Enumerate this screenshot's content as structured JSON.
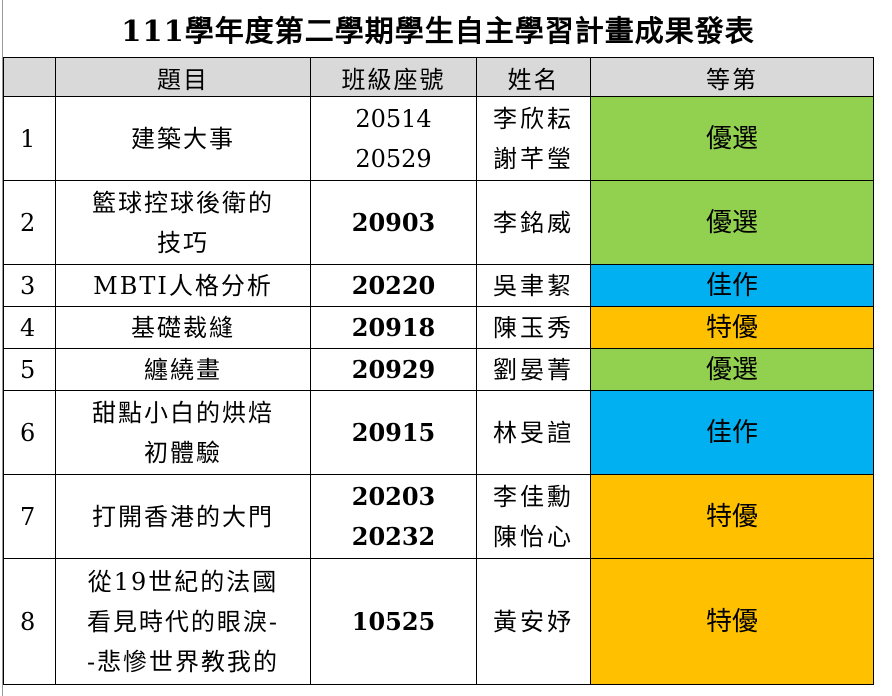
{
  "title": "111學年度第二學期學生自主學習計畫成果發表",
  "headers": {
    "no": "",
    "topic": "題目",
    "class": "班級座號",
    "name": "姓名",
    "grade": "等第"
  },
  "colors": {
    "優選": "#92d050",
    "佳作": "#00b0f0",
    "特優": "#ffc000",
    "header_bg": "#d9d9d9"
  },
  "rows": [
    {
      "no": "1",
      "topic": [
        "建築大事"
      ],
      "class": [
        "20514",
        "20529"
      ],
      "name": [
        "李欣耘",
        "謝芊瑩"
      ],
      "grade": "優選",
      "bold_class": false
    },
    {
      "no": "2",
      "topic": [
        "籃球控球後衛的",
        "技巧"
      ],
      "class": [
        "20903"
      ],
      "name": [
        "李銘威"
      ],
      "grade": "優選",
      "bold_class": true
    },
    {
      "no": "3",
      "topic": [
        "MBTI人格分析"
      ],
      "class": [
        "20220"
      ],
      "name": [
        "吳聿絜"
      ],
      "grade": "佳作",
      "bold_class": true
    },
    {
      "no": "4",
      "topic": [
        "基礎裁縫"
      ],
      "class": [
        "20918"
      ],
      "name": [
        "陳玉秀"
      ],
      "grade": "特優",
      "bold_class": true
    },
    {
      "no": "5",
      "topic": [
        "纏繞畫"
      ],
      "class": [
        "20929"
      ],
      "name": [
        "劉晏菁"
      ],
      "grade": "優選",
      "bold_class": true
    },
    {
      "no": "6",
      "topic": [
        "甜點小白的烘焙",
        "初體驗"
      ],
      "class": [
        "20915"
      ],
      "name": [
        "林旻諠"
      ],
      "grade": "佳作",
      "bold_class": true
    },
    {
      "no": "7",
      "topic": [
        "打開香港的大門"
      ],
      "class": [
        "20203",
        "20232"
      ],
      "name": [
        "李佳勳",
        "陳怡心"
      ],
      "grade": "特優",
      "bold_class": true
    },
    {
      "no": "8",
      "topic": [
        "從19世紀的法國",
        "看見時代的眼淚-",
        "-悲慘世界教我的"
      ],
      "class": [
        "10525"
      ],
      "name": [
        "黃安妤"
      ],
      "grade": "特優",
      "bold_class": true
    }
  ]
}
